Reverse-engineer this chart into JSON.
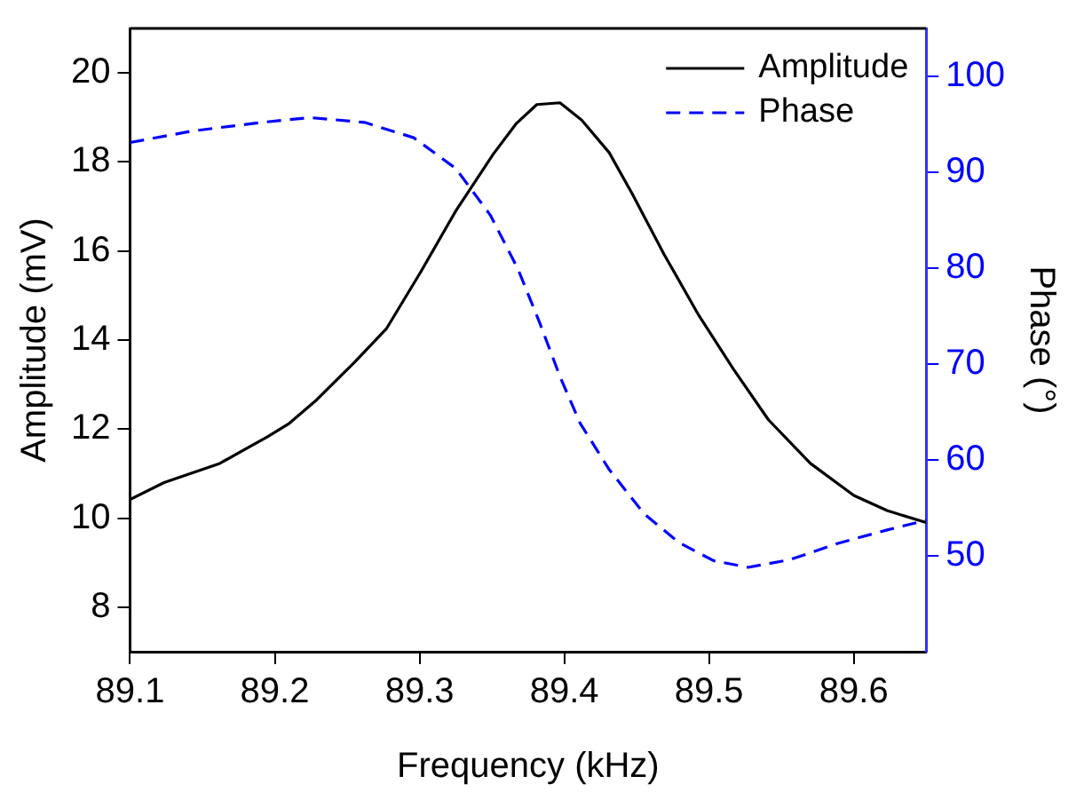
{
  "chart_data": {
    "type": "line",
    "xlabel": "Frequency (kHz)",
    "ylabel": "Amplitude (mV)",
    "y2label": "Phase (°)",
    "xlim": [
      89.1,
      89.65
    ],
    "xticks": [
      89.1,
      89.2,
      89.3,
      89.4,
      89.5,
      89.6
    ],
    "ylim": [
      7,
      21
    ],
    "yticks": [
      8,
      10,
      12,
      14,
      16,
      18,
      20
    ],
    "y2lim": [
      40,
      105
    ],
    "y2ticks": [
      50,
      60,
      70,
      80,
      90,
      100
    ],
    "legend": "top right",
    "grid": false,
    "marker": "none",
    "series": [
      {
        "name": "Amplitude",
        "color": "#000000",
        "line_style": "solid",
        "x": [
          89.1,
          89.1235,
          89.162,
          89.195,
          89.21,
          89.229,
          89.255,
          89.277,
          89.301,
          89.325,
          89.351,
          89.367,
          89.381,
          89.397,
          89.412,
          89.431,
          89.447,
          89.469,
          89.493,
          89.517,
          89.541,
          89.57,
          89.6,
          89.623,
          89.65
        ],
        "values": [
          10.42,
          10.8,
          11.23,
          11.83,
          12.13,
          12.66,
          13.5,
          14.25,
          15.54,
          16.9,
          18.18,
          18.87,
          19.29,
          19.33,
          18.94,
          18.21,
          17.28,
          15.92,
          14.55,
          13.34,
          12.21,
          11.23,
          10.51,
          10.17,
          9.9
        ]
      },
      {
        "name": "Phase",
        "color": "#0000ff",
        "line_style": "dashed",
        "axis": "y2",
        "x": [
          89.1,
          89.143,
          89.191,
          89.224,
          89.262,
          89.296,
          89.325,
          89.349,
          89.368,
          89.383,
          89.397,
          89.411,
          89.431,
          89.455,
          89.479,
          89.503,
          89.527,
          89.556,
          89.589,
          89.623,
          89.65
        ],
        "values": [
          93.1,
          94.3,
          95.2,
          95.7,
          95.2,
          93.6,
          90.4,
          85.5,
          79.9,
          74.3,
          68.7,
          63.8,
          59.0,
          54.4,
          51.4,
          49.5,
          48.8,
          49.6,
          51.3,
          52.7,
          53.7
        ]
      }
    ]
  }
}
